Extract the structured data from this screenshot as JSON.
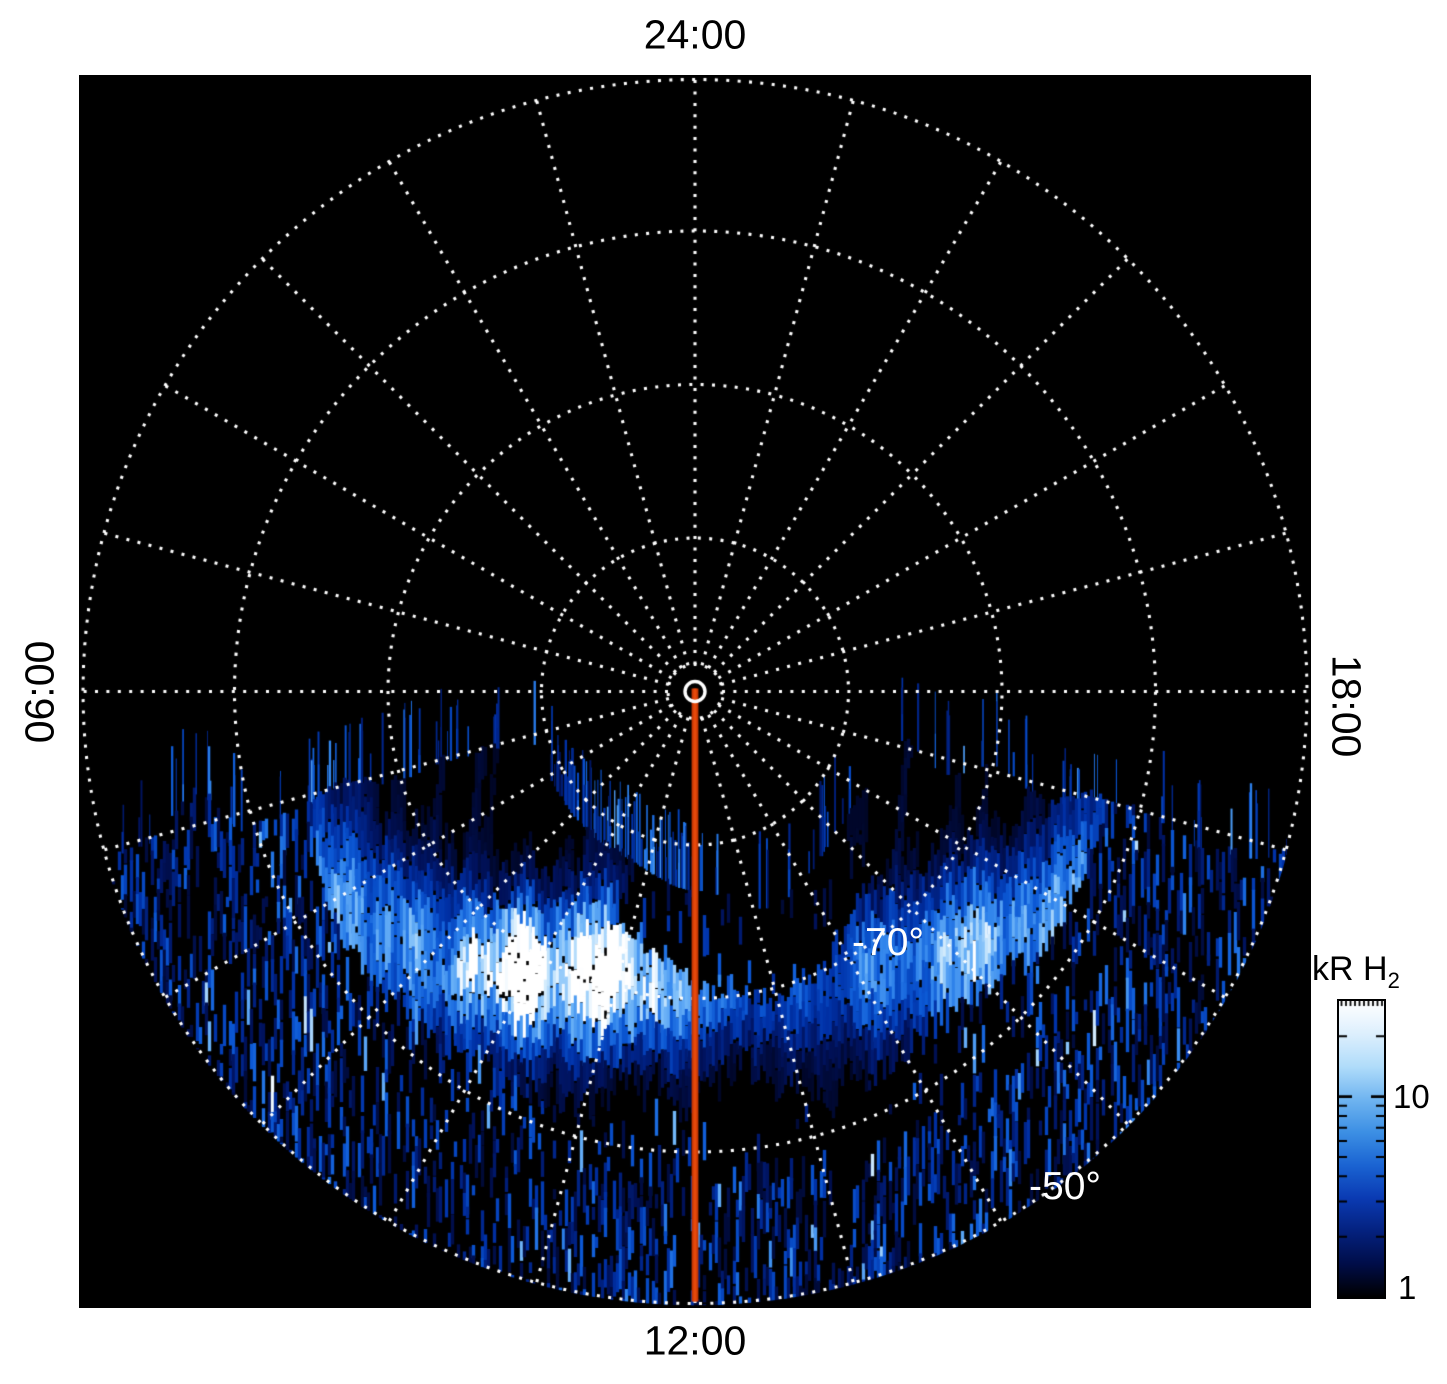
{
  "figure": {
    "background": "#ffffff",
    "plot_background": "#000000",
    "grid_color": "#ffffff"
  },
  "axes": {
    "top_label": "24:00",
    "left_label": "06:00",
    "bottom_label": "12:00",
    "right_label": "18:00"
  },
  "plot_labels": {
    "lat_minus70": "-70°",
    "lat_minus50": "-50°"
  },
  "colorbar": {
    "title": "kR H",
    "title_sub": "2",
    "tick_10": "10",
    "tick_1": "1"
  },
  "chart_data": {
    "type": "heatmap",
    "projection": "polar",
    "title": "",
    "units": "kR H2",
    "local_time_axis": {
      "labels": [
        "24:00",
        "06:00",
        "12:00",
        "18:00"
      ],
      "positions": [
        "top",
        "left",
        "bottom",
        "right"
      ],
      "spoke_interval_hours": 1,
      "orientation": "local time increases counterclockwise, 24:00 at top, 12:00 at bottom"
    },
    "latitude_axis": {
      "pole_deg": -90,
      "outer_edge_deg": -50,
      "circle_interval_deg": 10,
      "dotted_circles_deg": [
        -80,
        -70,
        -60,
        -50
      ],
      "labeled_circles": [
        {
          "lat_deg": -70,
          "label": "-70°",
          "label_local_time": 14.4
        },
        {
          "lat_deg": -50,
          "label": "-50°",
          "label_local_time": 14.4
        }
      ]
    },
    "color_scale": {
      "type": "log",
      "min_kR": 1,
      "max_kR": 30,
      "major_ticks": [
        1,
        10
      ],
      "minor_ticks": [
        2,
        3,
        4,
        5,
        6,
        7,
        8,
        9,
        20,
        30
      ],
      "gradient_top_to_bottom": [
        "#ffffff",
        "#ddeffd",
        "#b0dcfa",
        "#6fb4f0",
        "#3c8fe4",
        "#1a63d2",
        "#0a3ab2",
        "#04217e",
        "#000d48",
        "#000000"
      ]
    },
    "noon_meridian": {
      "local_time": 12,
      "color": "#c63705",
      "core_color": "#e8490b"
    },
    "aurora": {
      "seed": 11,
      "local_time_extent": [
        5.9,
        18.15
      ],
      "main_oval": {
        "radial_center_lat_deg": -70,
        "peak_local_time": 10.1,
        "peak_brightness_kR": 30,
        "typical_brightness_kR": 8
      },
      "dark_arc_gap": {
        "local_time_range": [
          10.7,
          15.1
        ],
        "lat_range": [
          -77,
          -72
        ]
      },
      "diffuse_emission": {
        "lat_range": [
          -63,
          -50
        ],
        "brightness_kR": [
          1,
          6
        ]
      },
      "palette_stops": [
        [
          0,
          2,
          20
        ],
        [
          0,
          18,
          92
        ],
        [
          0,
          48,
          165
        ],
        [
          12,
          88,
          212
        ],
        [
          48,
          132,
          236
        ],
        [
          112,
          182,
          248
        ],
        [
          192,
          226,
          252
        ],
        [
          255,
          255,
          255
        ]
      ],
      "palette_positions": [
        0,
        0.15,
        0.3,
        0.45,
        0.6,
        0.75,
        0.88,
        1
      ]
    }
  }
}
